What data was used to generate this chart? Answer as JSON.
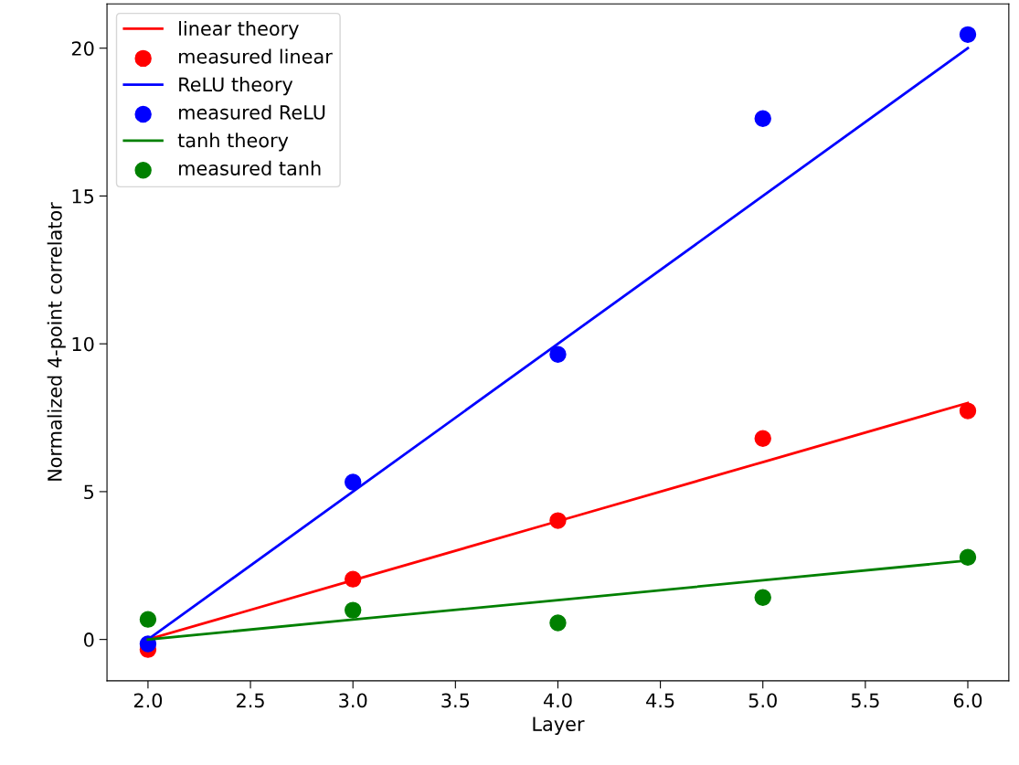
{
  "chart_data": {
    "type": "line",
    "xlabel": "Layer",
    "ylabel": "Normalized 4-point correlator",
    "x": [
      2,
      3,
      4,
      5,
      6
    ],
    "series": [
      {
        "name": "linear theory",
        "color": "#ff0000",
        "marker": "none",
        "values": [
          0,
          2,
          4,
          6,
          8
        ]
      },
      {
        "name": "measured linear",
        "type": "scatter",
        "marker": "circle",
        "color": "#ff0000",
        "values": [
          -0.34,
          2.04,
          4.02,
          6.8,
          7.73
        ]
      },
      {
        "name": "ReLU theory",
        "color": "#0000ff",
        "marker": "none",
        "values": [
          0,
          5,
          10,
          15,
          20
        ]
      },
      {
        "name": "measured ReLU",
        "type": "scatter",
        "marker": "circle",
        "color": "#0000ff",
        "values": [
          -0.15,
          5.32,
          9.64,
          17.62,
          20.46
        ]
      },
      {
        "name": "tanh theory",
        "color": "#008000",
        "marker": "none",
        "values": [
          0,
          0.67,
          1.33,
          2,
          2.67
        ]
      },
      {
        "name": "measured tanh",
        "type": "scatter",
        "marker": "circle",
        "color": "#008000",
        "values": [
          0.68,
          0.99,
          0.56,
          1.42,
          2.78
        ]
      }
    ],
    "xlim": [
      1.8,
      6.2
    ],
    "xticks": [
      {
        "value": 2,
        "label": "2.0"
      },
      {
        "value": 2.5,
        "label": "2.5"
      },
      {
        "value": 3,
        "label": "3.0"
      },
      {
        "value": 3.5,
        "label": "3.5"
      },
      {
        "value": 4,
        "label": "4.0"
      },
      {
        "value": 4.5,
        "label": "4.5"
      },
      {
        "value": 5,
        "label": "5.0"
      },
      {
        "value": 5.5,
        "label": "5.5"
      },
      {
        "value": 6,
        "label": "6.0"
      }
    ],
    "ylim": [
      -1.4,
      21.5
    ],
    "yticks": [
      0,
      5,
      10,
      15,
      20
    ],
    "legend": "top left"
  }
}
